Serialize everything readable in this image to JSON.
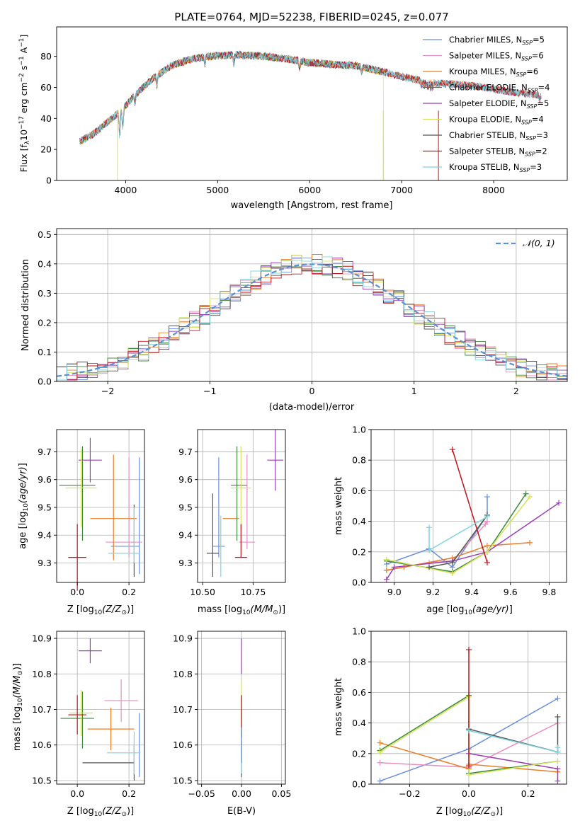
{
  "figure_title": "PLATE=0764, MJD=52238, FIBERID=0245, z=0.077",
  "colors": {
    "chabrier_miles": "#6a8fdb",
    "salpeter_miles": "#e88fbf",
    "kroupa_miles": "#e97d27",
    "chabrier_elodie": "#3d8a3d",
    "salpeter_elodie": "#9b3fb5",
    "kroupa_elodie": "#d7e35a",
    "chabrier_stelib": "#555555",
    "salpeter_stelib": "#c0161b",
    "kroupa_stelib": "#7fd4e0",
    "grid": "#b0b0b0",
    "normal": "#5b8fd6"
  },
  "legend_entries": [
    {
      "pre": "Chabrier MILES, N",
      "sub": "SSP",
      "post": "=5",
      "color": "#6a8fdb"
    },
    {
      "pre": "Salpeter MILES, N",
      "sub": "SSP",
      "post": "=6",
      "color": "#e88fbf"
    },
    {
      "pre": "Kroupa MILES, N",
      "sub": "SSP",
      "post": "=6",
      "color": "#e97d27"
    },
    {
      "pre": "Chabrier ELODIE, N",
      "sub": "SSP",
      "post": "=4",
      "color": "#3d8a3d"
    },
    {
      "pre": "Salpeter ELODIE, N",
      "sub": "SSP",
      "post": "=5",
      "color": "#9b3fb5"
    },
    {
      "pre": "Kroupa ELODIE, N",
      "sub": "SSP",
      "post": "=4",
      "color": "#d7e35a"
    },
    {
      "pre": "Chabrier STELIB, N",
      "sub": "SSP",
      "post": "=3",
      "color": "#555555"
    },
    {
      "pre": "Salpeter STELIB, N",
      "sub": "SSP",
      "post": "=2",
      "color": "#c0161b"
    },
    {
      "pre": "Kroupa STELIB, N",
      "sub": "SSP",
      "post": "=3",
      "color": "#7fd4e0"
    }
  ],
  "chart_data": [
    {
      "id": "spectrum",
      "type": "line",
      "xlabel": "wavelength [Angstrom, rest frame]",
      "ylabel": "Flux [fλ10⁻¹⁷ erg cm⁻² s⁻¹ A⁻¹]",
      "xlim": [
        3250,
        8800
      ],
      "ylim": [
        0,
        99
      ],
      "xticks": [
        4000,
        5000,
        6000,
        7000,
        8000
      ],
      "yticks": [
        0,
        20,
        40,
        60,
        80
      ],
      "continuum": [
        [
          3500,
          25
        ],
        [
          3650,
          30
        ],
        [
          3850,
          40
        ],
        [
          3950,
          45
        ],
        [
          4100,
          55
        ],
        [
          4300,
          66
        ],
        [
          4500,
          74
        ],
        [
          4700,
          78
        ],
        [
          4900,
          80
        ],
        [
          5200,
          81
        ],
        [
          5500,
          80
        ],
        [
          5800,
          78
        ],
        [
          6000,
          76
        ],
        [
          6200,
          75
        ],
        [
          6500,
          74
        ],
        [
          6800,
          70
        ],
        [
          7000,
          67
        ],
        [
          7300,
          63
        ],
        [
          7600,
          62
        ],
        [
          7900,
          60
        ],
        [
          8200,
          57
        ],
        [
          8500,
          55
        ]
      ]
    },
    {
      "id": "residuals",
      "type": "histogram",
      "xlabel": "(data-model)/error",
      "ylabel": "Normed distribution",
      "xlim": [
        -2.5,
        2.5
      ],
      "ylim": [
        0,
        0.52
      ],
      "xticks": [
        -2,
        -1,
        0,
        1,
        2
      ],
      "yticks": [
        0.0,
        0.1,
        0.2,
        0.3,
        0.4,
        0.5
      ],
      "legend": "𝒩(0, 1)",
      "bin_edges": [
        -2.5,
        -2.4,
        -2.3,
        -2.2,
        -2.1,
        -2.0,
        -1.9,
        -1.8,
        -1.7,
        -1.6,
        -1.5,
        -1.4,
        -1.3,
        -1.2,
        -1.1,
        -1.0,
        -0.9,
        -0.8,
        -0.7,
        -0.6,
        -0.5,
        -0.4,
        -0.3,
        -0.2,
        -0.1,
        0.0,
        0.1,
        0.2,
        0.3,
        0.4,
        0.5,
        0.6,
        0.7,
        0.8,
        0.9,
        1.0,
        1.1,
        1.2,
        1.3,
        1.4,
        1.5,
        1.6,
        1.7,
        1.8,
        1.9,
        2.0,
        2.1,
        2.2,
        2.3,
        2.4,
        2.5
      ]
    },
    {
      "id": "z-vs-age",
      "type": "errorbar",
      "xlabel": "Z [log₁₀(Z/Z⊙)]",
      "ylabel": "age  [log₁₀(age/yr)]",
      "xlim": [
        -0.08,
        0.26
      ],
      "ylim": [
        9.23,
        9.78
      ],
      "xticks": [
        0.0,
        0.2
      ],
      "yticks": [
        9.3,
        9.4,
        9.5,
        9.6,
        9.7
      ],
      "points": [
        {
          "c": "chabrier_miles",
          "x": 0.185,
          "y": 9.36,
          "xe": 0.055,
          "ye": 0.0
        },
        {
          "c": "chabrier_miles",
          "x": 0.24,
          "y": 9.47,
          "xe": 0.0,
          "ye": 0.21
        },
        {
          "c": "salpeter_miles",
          "x": 0.18,
          "y": 9.375,
          "xe": 0.07,
          "ye": 0.0
        },
        {
          "c": "salpeter_miles",
          "x": 0.2,
          "y": 9.5,
          "xe": 0.0,
          "ye": 0.18
        },
        {
          "c": "kroupa_miles",
          "x": 0.14,
          "y": 9.46,
          "xe": 0.09,
          "ye": 0.0
        },
        {
          "c": "kroupa_miles",
          "x": 0.14,
          "y": 9.5,
          "xe": 0.0,
          "ye": 0.19
        },
        {
          "c": "chabrier_elodie",
          "x": 0.02,
          "y": 9.55,
          "xe": 0.0,
          "ye": 0.17
        },
        {
          "c": "chabrier_elodie",
          "x": 0.0,
          "y": 9.58,
          "xe": 0.07,
          "ye": 0.0
        },
        {
          "c": "salpeter_elodie",
          "x": 0.05,
          "y": 9.67,
          "xe": 0.045,
          "ye": 0.08
        },
        {
          "c": "kroupa_elodie",
          "x": 0.015,
          "y": 9.57,
          "xe": 0.06,
          "ye": 0.14
        },
        {
          "c": "chabrier_stelib",
          "x": 0.22,
          "y": 9.38,
          "xe": 0.0,
          "ye": 0.13
        },
        {
          "c": "salpeter_stelib",
          "x": 0.0,
          "y": 9.32,
          "xe": 0.035,
          "ye": 0.12
        },
        {
          "c": "kroupa_stelib",
          "x": 0.18,
          "y": 9.335,
          "xe": 0.06,
          "ye": 0.0
        },
        {
          "c": "kroupa_stelib",
          "x": 0.22,
          "y": 9.4,
          "xe": 0.0,
          "ye": 0.1
        }
      ]
    },
    {
      "id": "mass-vs-age",
      "type": "errorbar",
      "xlabel": "mass [log₁₀(M/M⊙)]",
      "ylabel": "",
      "xlim": [
        10.475,
        10.91
      ],
      "ylim": [
        9.23,
        9.78
      ],
      "xticks": [
        10.5,
        10.75
      ],
      "xtick_labels": [
        "10.50",
        "10.75"
      ],
      "yticks": [
        9.3,
        9.4,
        9.5,
        9.6,
        9.7
      ],
      "points": [
        {
          "c": "chabrier_miles",
          "x": 10.58,
          "y": 9.5,
          "xe": 0.0,
          "ye": 0.18
        },
        {
          "c": "chabrier_miles",
          "x": 10.58,
          "y": 9.36,
          "xe": 0.03,
          "ye": 0.0
        },
        {
          "c": "salpeter_miles",
          "x": 10.72,
          "y": 9.375,
          "xe": 0.04,
          "ye": 0.0
        },
        {
          "c": "salpeter_miles",
          "x": 10.72,
          "y": 9.52,
          "xe": 0.0,
          "ye": 0.17
        },
        {
          "c": "kroupa_miles",
          "x": 10.64,
          "y": 9.46,
          "xe": 0.04,
          "ye": 0.0
        },
        {
          "c": "chabrier_elodie",
          "x": 10.68,
          "y": 9.58,
          "xe": 0.04,
          "ye": 0.0
        },
        {
          "c": "chabrier_elodie",
          "x": 10.67,
          "y": 9.55,
          "xe": 0.0,
          "ye": 0.17
        },
        {
          "c": "salpeter_elodie",
          "x": 10.86,
          "y": 9.67,
          "xe": 0.04,
          "ye": 0.11
        },
        {
          "c": "kroupa_elodie",
          "x": 10.69,
          "y": 9.57,
          "xe": 0.05,
          "ye": 0.15
        },
        {
          "c": "chabrier_stelib",
          "x": 10.55,
          "y": 9.335,
          "xe": 0.03,
          "ye": 0.0
        },
        {
          "c": "chabrier_stelib",
          "x": 10.55,
          "y": 9.4,
          "xe": 0.0,
          "ye": 0.15
        },
        {
          "c": "salpeter_stelib",
          "x": 10.69,
          "y": 9.32,
          "xe": 0.03,
          "ye": 0.0
        },
        {
          "c": "salpeter_stelib",
          "x": 10.69,
          "y": 9.38,
          "xe": 0.0,
          "ye": 0.06
        },
        {
          "c": "kroupa_stelib",
          "x": 10.59,
          "y": 9.36,
          "xe": 0.0,
          "ye": 0.11
        }
      ]
    },
    {
      "id": "age-vs-weight",
      "type": "line",
      "xlabel": "age  [log₁₀(age/yr)]",
      "ylabel": "mass weight",
      "xlim": [
        8.88,
        9.89
      ],
      "ylim": [
        0,
        1
      ],
      "xticks": [
        9.0,
        9.2,
        9.4,
        9.6,
        9.8
      ],
      "yticks": [
        0.0,
        0.2,
        0.4,
        0.6,
        0.8,
        1.0
      ],
      "series": [
        {
          "c": "chabrier_miles",
          "x": [
            8.96,
            9.18,
            9.3,
            9.48,
            9.48
          ],
          "y": [
            0.12,
            0.22,
            0.1,
            0.44,
            0.56
          ]
        },
        {
          "c": "salpeter_miles",
          "x": [
            8.96,
            9.18,
            9.3,
            9.47,
            9.48,
            9.48
          ],
          "y": [
            0.08,
            0.13,
            0.14,
            0.38,
            0.4,
            0.4
          ]
        },
        {
          "c": "kroupa_miles",
          "x": [
            8.96,
            9.05,
            9.3,
            9.48,
            9.7
          ],
          "y": [
            0.08,
            0.1,
            0.16,
            0.24,
            0.26
          ]
        },
        {
          "c": "chabrier_elodie",
          "x": [
            8.96,
            9.3,
            9.48,
            9.68
          ],
          "y": [
            0.14,
            0.07,
            0.2,
            0.58
          ]
        },
        {
          "c": "salpeter_elodie",
          "x": [
            8.96,
            9.0,
            9.3,
            9.48,
            9.85
          ],
          "y": [
            0.02,
            0.1,
            0.14,
            0.2,
            0.52
          ]
        },
        {
          "c": "kroupa_elodie",
          "x": [
            8.96,
            9.3,
            9.48,
            9.7
          ],
          "y": [
            0.15,
            0.06,
            0.2,
            0.56
          ]
        },
        {
          "c": "chabrier_stelib",
          "x": [
            9.18,
            9.3,
            9.48
          ],
          "y": [
            0.1,
            0.13,
            0.44
          ]
        },
        {
          "c": "salpeter_stelib",
          "x": [
            9.3,
            9.48
          ],
          "y": [
            0.87,
            0.13
          ]
        },
        {
          "c": "kroupa_stelib",
          "x": [
            9.18,
            9.18,
            9.48
          ],
          "y": [
            0.36,
            0.21,
            0.43
          ]
        }
      ]
    },
    {
      "id": "z-vs-mass",
      "type": "errorbar",
      "xlabel": "Z [log₁₀(Z/Z⊙)]",
      "ylabel": "mass [log₁₀(M/M⊙)]",
      "xlim": [
        -0.08,
        0.26
      ],
      "ylim": [
        10.49,
        10.92
      ],
      "xticks": [
        0.0,
        0.2
      ],
      "yticks": [
        10.5,
        10.6,
        10.7,
        10.8,
        10.9
      ],
      "points": [
        {
          "c": "chabrier_miles",
          "x": 0.24,
          "y": 10.6,
          "xe": 0.0,
          "ye": 0.09
        },
        {
          "c": "salpeter_miles",
          "x": 0.17,
          "y": 10.725,
          "xe": 0.065,
          "ye": 0.06
        },
        {
          "c": "kroupa_miles",
          "x": 0.13,
          "y": 10.645,
          "xe": 0.09,
          "ye": 0.06
        },
        {
          "c": "chabrier_elodie",
          "x": 0.0,
          "y": 10.675,
          "xe": 0.065,
          "ye": 0.0
        },
        {
          "c": "chabrier_elodie",
          "x": 0.02,
          "y": 10.67,
          "xe": 0.0,
          "ye": 0.08
        },
        {
          "c": "salpeter_elodie",
          "x": 0.05,
          "y": 10.865,
          "xe": 0.045,
          "ye": 0.035
        },
        {
          "c": "kroupa_elodie",
          "x": 0.015,
          "y": 10.69,
          "xe": 0.045,
          "ye": 0.065
        },
        {
          "c": "chabrier_stelib",
          "x": 0.12,
          "y": 10.55,
          "xe": 0.1,
          "ye": 0.0
        },
        {
          "c": "chabrier_stelib",
          "x": 0.22,
          "y": 10.55,
          "xe": 0.0,
          "ye": 0.05
        },
        {
          "c": "salpeter_stelib",
          "x": 0.0,
          "y": 10.685,
          "xe": 0.035,
          "ye": 0.055
        },
        {
          "c": "kroupa_stelib",
          "x": 0.18,
          "y": 10.578,
          "xe": 0.065,
          "ye": 0.0
        },
        {
          "c": "kroupa_stelib",
          "x": 0.22,
          "y": 10.578,
          "xe": 0.0,
          "ye": 0.06
        }
      ]
    },
    {
      "id": "ebv-vs-mass",
      "type": "errorbar",
      "xlabel": "E(B-V)",
      "ylabel": "",
      "xlim": [
        -0.055,
        0.055
      ],
      "ylim": [
        10.49,
        10.92
      ],
      "xticks": [
        -0.05,
        0.0,
        0.05
      ],
      "xtick_labels": [
        "−0.05",
        "0.00",
        "0.05"
      ],
      "yticks": [
        10.5,
        10.6,
        10.7,
        10.8,
        10.9
      ],
      "points": [
        {
          "c": "salpeter_elodie",
          "x": 0.0,
          "y": 10.85,
          "xe": 0.0,
          "ye": 0.05
        },
        {
          "c": "kroupa_elodie",
          "x": 0.0,
          "y": 10.72,
          "xe": 0.0,
          "ye": 0.06
        },
        {
          "c": "chabrier_elodie",
          "x": 0.0,
          "y": 10.67,
          "xe": 0.0,
          "ye": 0.07
        },
        {
          "c": "salpeter_stelib",
          "x": 0.0,
          "y": 10.68,
          "xe": 0.0,
          "ye": 0.06
        },
        {
          "c": "chabrier_stelib",
          "x": 0.0,
          "y": 10.56,
          "xe": 0.0,
          "ye": 0.05
        },
        {
          "c": "kroupa_stelib",
          "x": 0.0,
          "y": 10.56,
          "xe": 0.0,
          "ye": 0.04
        },
        {
          "c": "chabrier_miles",
          "x": 0.0,
          "y": 10.6,
          "xe": 0.0,
          "ye": 0.05
        }
      ]
    },
    {
      "id": "z-vs-weight",
      "type": "line",
      "xlabel": "Z [log₁₀(Z/Z⊙)]",
      "ylabel": "mass weight",
      "xlim": [
        -0.33,
        0.33
      ],
      "ylim": [
        0,
        1
      ],
      "xticks": [
        -0.2,
        0.0,
        0.2
      ],
      "xtick_labels": [
        "−0.2",
        "0.0",
        "0.2"
      ],
      "yticks": [
        0.0,
        0.2,
        0.4,
        0.6,
        0.8,
        1.0
      ],
      "series": [
        {
          "c": "chabrier_miles",
          "x": [
            -0.3,
            0.0,
            0.3
          ],
          "y": [
            0.02,
            0.23,
            0.56
          ]
        },
        {
          "c": "salpeter_miles",
          "x": [
            -0.3,
            0.0,
            0.3
          ],
          "y": [
            0.14,
            0.11,
            0.4
          ]
        },
        {
          "c": "kroupa_miles",
          "x": [
            -0.3,
            0.0,
            0.0,
            0.3
          ],
          "y": [
            0.27,
            0.1,
            0.13,
            0.08
          ]
        },
        {
          "c": "chabrier_elodie",
          "x": [
            -0.3,
            0.0,
            0.0,
            0.3
          ],
          "y": [
            0.22,
            0.58,
            0.07,
            0.15
          ]
        },
        {
          "c": "salpeter_elodie",
          "x": [
            0.0,
            0.3,
            0.3
          ],
          "y": [
            0.2,
            0.1,
            0.02
          ]
        },
        {
          "c": "kroupa_elodie",
          "x": [
            -0.3,
            0.0,
            0.0,
            0.3
          ],
          "y": [
            0.21,
            0.57,
            0.06,
            0.15
          ]
        },
        {
          "c": "chabrier_stelib",
          "x": [
            0.0,
            0.3,
            0.3
          ],
          "y": [
            0.36,
            0.21,
            0.44
          ]
        },
        {
          "c": "salpeter_stelib",
          "x": [
            0.0,
            0.0
          ],
          "y": [
            0.88,
            0.12
          ]
        },
        {
          "c": "kroupa_stelib",
          "x": [
            0.0,
            0.3,
            0.3
          ],
          "y": [
            0.35,
            0.21,
            0.24
          ]
        }
      ]
    }
  ]
}
